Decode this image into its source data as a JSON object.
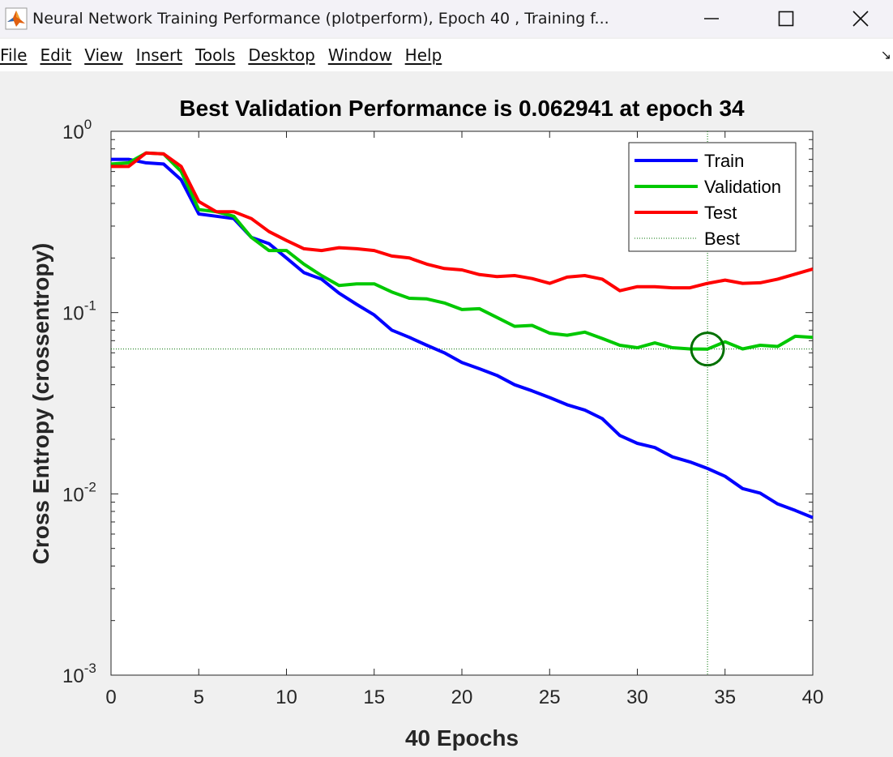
{
  "window": {
    "title": "Neural Network Training Performance (plotperform), Epoch 40 , Training f...",
    "icon": "matlab-icon",
    "minimize_icon": "minimize-icon",
    "maximize_icon": "maximize-icon",
    "close_icon": "close-icon"
  },
  "menu": {
    "items": [
      {
        "label": "File"
      },
      {
        "label": "Edit"
      },
      {
        "label": "View"
      },
      {
        "label": "Insert"
      },
      {
        "label": "Tools"
      },
      {
        "label": "Desktop"
      },
      {
        "label": "Window"
      },
      {
        "label": "Help"
      }
    ],
    "dock_icon": "dock-arrow-icon"
  },
  "chart_data": {
    "type": "line",
    "title": "Best Validation Performance is 0.062941 at epoch 34",
    "xlabel": "40 Epochs",
    "ylabel": "Cross Entropy  (crossentropy)",
    "yscale": "log",
    "xlim": [
      0,
      40
    ],
    "ylim": [
      0.001,
      1
    ],
    "xticks": [
      0,
      5,
      10,
      15,
      20,
      25,
      30,
      35,
      40
    ],
    "yticks": [
      {
        "value": 1,
        "base": "10",
        "exp": "0"
      },
      {
        "value": 0.1,
        "base": "10",
        "exp": "-1"
      },
      {
        "value": 0.01,
        "base": "10",
        "exp": "-2"
      },
      {
        "value": 0.001,
        "base": "10",
        "exp": "-3"
      }
    ],
    "grid": false,
    "legend_position": "top-right",
    "x": [
      0,
      1,
      2,
      3,
      4,
      5,
      6,
      7,
      8,
      9,
      10,
      11,
      12,
      13,
      14,
      15,
      16,
      17,
      18,
      19,
      20,
      21,
      22,
      23,
      24,
      25,
      26,
      27,
      28,
      29,
      30,
      31,
      32,
      33,
      34,
      35,
      36,
      37,
      38,
      39,
      40
    ],
    "series": [
      {
        "name": "Train",
        "color": "#0000ff",
        "values": [
          0.7,
          0.7,
          0.67,
          0.66,
          0.54,
          0.35,
          0.34,
          0.33,
          0.26,
          0.24,
          0.2,
          0.166,
          0.153,
          0.128,
          0.111,
          0.097,
          0.08,
          0.073,
          0.066,
          0.06,
          0.053,
          0.049,
          0.045,
          0.04,
          0.037,
          0.034,
          0.031,
          0.029,
          0.026,
          0.021,
          0.019,
          0.018,
          0.016,
          0.015,
          0.0138,
          0.0125,
          0.0107,
          0.0101,
          0.0088,
          0.0081,
          0.0074
        ]
      },
      {
        "name": "Validation",
        "color": "#00c800",
        "values": [
          0.66,
          0.67,
          0.76,
          0.75,
          0.6,
          0.37,
          0.36,
          0.34,
          0.26,
          0.22,
          0.22,
          0.185,
          0.16,
          0.141,
          0.144,
          0.144,
          0.13,
          0.12,
          0.119,
          0.113,
          0.104,
          0.105,
          0.094,
          0.084,
          0.085,
          0.077,
          0.075,
          0.078,
          0.072,
          0.066,
          0.064,
          0.068,
          0.064,
          0.063,
          0.0629,
          0.069,
          0.063,
          0.066,
          0.065,
          0.074,
          0.073
        ]
      },
      {
        "name": "Test",
        "color": "#ff0000",
        "values": [
          0.64,
          0.64,
          0.76,
          0.75,
          0.64,
          0.41,
          0.36,
          0.36,
          0.33,
          0.28,
          0.25,
          0.225,
          0.22,
          0.228,
          0.225,
          0.22,
          0.205,
          0.2,
          0.185,
          0.175,
          0.172,
          0.162,
          0.158,
          0.16,
          0.154,
          0.145,
          0.157,
          0.16,
          0.153,
          0.132,
          0.139,
          0.139,
          0.137,
          0.137,
          0.145,
          0.151,
          0.145,
          0.146,
          0.153,
          0.163,
          0.174
        ]
      }
    ],
    "best": {
      "name": "Best",
      "epoch": 34,
      "value": 0.062941,
      "color": "#007000"
    }
  }
}
